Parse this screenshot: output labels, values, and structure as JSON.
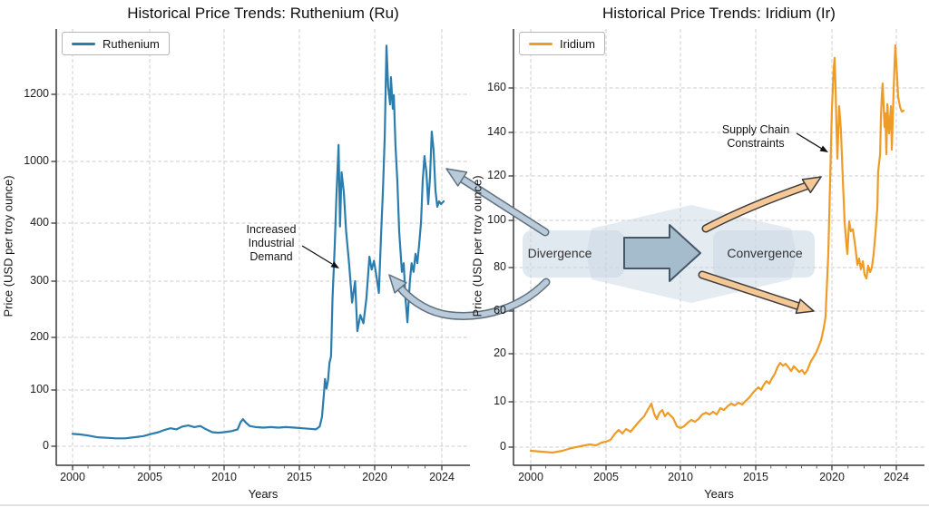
{
  "flow_labels": {
    "divergence": "Divergence",
    "convergence": "Convergence"
  },
  "palette": {
    "ruthenium_line": "#2a7dad",
    "iridium_line": "#ee9b28",
    "flow_ribbon": "#c9d7e3",
    "flow_arrow_fill": "#a5bccd",
    "flow_arrow_edge": "#44586a",
    "blue_band_fill": "#b9cbdb",
    "blue_band_edge": "#5f6f7c",
    "tan_band_fill": "#f5c795",
    "tan_band_edge": "#3b3b3b",
    "annotation_arrow": "#111111",
    "grid": "#cdcdcd"
  },
  "chart_data": [
    {
      "id": "ruthenium",
      "type": "line",
      "title": "Historical Price Trends: Ruthenium (Ru)",
      "legend_label": "Ruthenium",
      "xlabel": "Years",
      "ylabel": "Price (USD per troy ounce)",
      "line_color": "#2a7dad",
      "x_ticks": [
        2000,
        2005,
        2010,
        2015,
        2020,
        2024
      ],
      "y_ticks": [
        0,
        100,
        200,
        300,
        400,
        1000,
        1200
      ],
      "x_range": [
        1999,
        2024.7
      ],
      "grid": true,
      "legend_position": "upper left",
      "annotations": [
        {
          "text_lines": [
            "Increased",
            "Industrial",
            "Demand"
          ]
        }
      ],
      "series": {
        "name": "Ruthenium",
        "x": [
          2000.0,
          2000.5,
          2001.0,
          2001.6,
          2002.2,
          2002.8,
          2003.4,
          2004.0,
          2004.6,
          2005.1,
          2005.6,
          2006.0,
          2006.4,
          2006.8,
          2007.2,
          2007.6,
          2008.0,
          2008.4,
          2008.8,
          2009.2,
          2009.6,
          2010.0,
          2010.5,
          2010.9,
          2011.1,
          2011.25,
          2011.45,
          2011.7,
          2012.1,
          2012.6,
          2013.1,
          2013.6,
          2014.1,
          2014.7,
          2015.2,
          2015.7,
          2016.1,
          2016.35,
          2016.5,
          2016.65,
          2016.7,
          2016.8,
          2016.9,
          2017.0,
          2017.1,
          2017.2,
          2017.35,
          2017.45,
          2017.6,
          2017.7,
          2017.8,
          2017.95,
          2018.1,
          2018.3,
          2018.5,
          2018.7,
          2018.85,
          2019.05,
          2019.25,
          2019.45,
          2019.65,
          2019.8,
          2019.95,
          2020.1,
          2020.25,
          2020.38,
          2020.49,
          2020.6,
          2020.7,
          2020.8,
          2020.92,
          2020.97,
          2021.08,
          2021.14,
          2021.24,
          2021.35,
          2021.46,
          2021.62,
          2021.73,
          2021.84,
          2021.95,
          2022.1,
          2022.2,
          2022.32,
          2022.43,
          2022.54,
          2022.65,
          2022.76,
          2022.86,
          2022.97,
          2023.08,
          2023.19,
          2023.3,
          2023.4,
          2023.51,
          2023.62,
          2023.73,
          2023.84,
          2023.95,
          2024.11
        ],
        "y": [
          22,
          21,
          19,
          16,
          15,
          14,
          14,
          16,
          18,
          22,
          25,
          29,
          32,
          30,
          35,
          37,
          34,
          36,
          30,
          25,
          24,
          25,
          27,
          30,
          43,
          48,
          42,
          36,
          34,
          33,
          34,
          33,
          34,
          33,
          32,
          31,
          30,
          35,
          52,
          100,
          121,
          103,
          117,
          152,
          164,
          268,
          362,
          629,
          1049,
          394,
          894,
          700,
          386,
          330,
          262,
          300,
          211,
          240,
          225,
          270,
          342,
          320,
          335,
          310,
          279,
          378,
          718,
          1076,
          1345,
          1224,
          1170,
          1251,
          1157,
          1197,
          1049,
          806,
          386,
          316,
          331,
          268,
          227,
          300,
          331,
          316,
          347,
          331,
          363,
          409,
          806,
          1016,
          894,
          585,
          850,
          1089,
          1035,
          718,
          559,
          612,
          585,
          612
        ]
      }
    },
    {
      "id": "iridium",
      "type": "line",
      "title": "Historical Price Trends: Iridium (Ir)",
      "legend_label": "Iridium",
      "xlabel": "Years",
      "ylabel": "Price (USD per troy ounce)",
      "line_color": "#ee9b28",
      "x_ticks": [
        2000,
        2005,
        2010,
        2015,
        2020,
        2024
      ],
      "y_ticks": [
        0,
        10,
        20,
        60,
        80,
        100,
        120,
        140,
        160
      ],
      "x_range": [
        1999,
        2024.7
      ],
      "grid": true,
      "legend_position": "upper left",
      "annotations": [
        {
          "text_lines": [
            "Supply Chain",
            "Constraints"
          ]
        }
      ],
      "series": {
        "name": "Iridium",
        "x": [
          2000.0,
          2000.72,
          2001.45,
          2002.11,
          2002.71,
          2003.31,
          2003.92,
          2004.34,
          2004.7,
          2005.0,
          2005.3,
          2005.61,
          2005.85,
          2006.1,
          2006.34,
          2006.65,
          2006.95,
          2007.26,
          2007.56,
          2007.8,
          2008.05,
          2008.23,
          2008.41,
          2008.6,
          2008.78,
          2008.96,
          2009.15,
          2009.33,
          2009.51,
          2009.76,
          2010.0,
          2010.24,
          2010.48,
          2010.72,
          2010.96,
          2011.2,
          2011.45,
          2011.69,
          2011.93,
          2012.17,
          2012.41,
          2012.65,
          2012.89,
          2013.13,
          2013.37,
          2013.61,
          2013.86,
          2014.1,
          2014.34,
          2014.58,
          2014.82,
          2015.0,
          2015.18,
          2015.36,
          2015.54,
          2015.71,
          2015.89,
          2016.07,
          2016.25,
          2016.43,
          2016.61,
          2016.79,
          2016.96,
          2017.14,
          2017.32,
          2017.5,
          2017.68,
          2017.86,
          2018.04,
          2018.21,
          2018.39,
          2018.57,
          2018.75,
          2018.93,
          2019.11,
          2019.29,
          2019.46,
          2019.58,
          2019.76,
          2019.88,
          2020.0,
          2020.11,
          2020.17,
          2020.23,
          2020.28,
          2020.34,
          2020.45,
          2020.56,
          2020.68,
          2020.79,
          2020.9,
          2020.96,
          2021.07,
          2021.18,
          2021.3,
          2021.46,
          2021.58,
          2021.69,
          2021.8,
          2021.92,
          2022.03,
          2022.14,
          2022.25,
          2022.37,
          2022.48,
          2022.59,
          2022.7,
          2022.82,
          2022.87,
          2022.99,
          2023.04,
          2023.1,
          2023.15,
          2023.27,
          2023.32,
          2023.38,
          2023.44,
          2023.55,
          2023.66,
          2023.72,
          2023.83,
          2023.89,
          2023.94,
          2024.06,
          2024.11,
          2024.23,
          2024.34,
          2024.45
        ],
        "y": [
          -0.8,
          -1.0,
          -1.2,
          -0.8,
          -0.2,
          0.2,
          0.6,
          0.4,
          1.0,
          1.2,
          1.6,
          3.0,
          3.8,
          3.0,
          4.0,
          3.4,
          4.6,
          5.8,
          6.8,
          8.2,
          9.6,
          7.4,
          6.2,
          7.6,
          8.2,
          6.8,
          7.6,
          7.0,
          6.4,
          4.6,
          4.2,
          4.6,
          5.4,
          6.0,
          5.6,
          6.2,
          7.2,
          7.6,
          7.2,
          7.8,
          7.2,
          8.6,
          8.2,
          9.0,
          9.6,
          9.2,
          9.8,
          9.4,
          10.2,
          10.9,
          11.9,
          12.5,
          13.0,
          12.5,
          13.6,
          14.3,
          13.8,
          14.9,
          15.8,
          17.2,
          18.1,
          17.5,
          17.9,
          17.2,
          16.4,
          17.4,
          16.8,
          16.2,
          16.6,
          15.8,
          16.6,
          18.1,
          19.1,
          20.0,
          26.0,
          32.8,
          43.8,
          54.0,
          85.8,
          117.6,
          150.6,
          169.0,
          173.5,
          158.8,
          142.4,
          127.9,
          151.8,
          141.2,
          117.6,
          99.2,
          89.6,
          85.8,
          99.6,
          95.4,
          96.2,
          88.5,
          81.2,
          83.8,
          79.2,
          82.7,
          76.7,
          75.0,
          80.8,
          77.9,
          80.0,
          85.8,
          94.2,
          106.1,
          121.7,
          130.0,
          146.5,
          156.7,
          162.0,
          142.4,
          148.6,
          130.0,
          152.7,
          139.6,
          151.8,
          132.1,
          158.8,
          170.2,
          179.2,
          162.9,
          155.9,
          151.4,
          149.4,
          149.8
        ]
      }
    }
  ]
}
